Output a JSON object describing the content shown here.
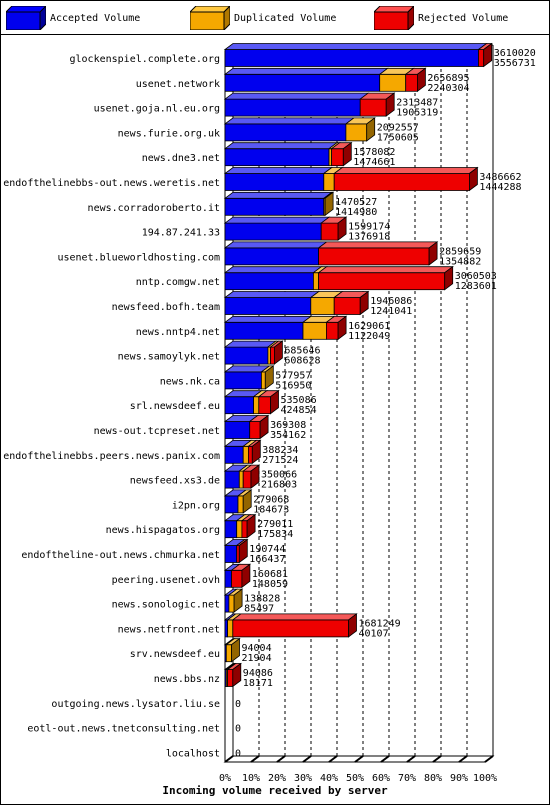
{
  "legend": {
    "accepted": "Accepted Volume",
    "duplicated": "Duplicated Volume",
    "rejected": "Rejected Volume"
  },
  "colors": {
    "accepted": "#0000ee",
    "duplicated": "#f5a800",
    "rejected": "#ee0000",
    "background": "#ffffff"
  },
  "chart_data": {
    "type": "bar",
    "orientation": "horizontal",
    "stacked": true,
    "categories": [
      "glockenspiel.complete.org",
      "usenet.network",
      "usenet.goja.nl.eu.org",
      "news.furie.org.uk",
      "news.dne3.net",
      "endofthelinebbs-out.news.weretis.net",
      "news.corradoroberto.it",
      "194.87.241.33",
      "usenet.blueworldhosting.com",
      "nntp.comgw.net",
      "newsfeed.bofh.team",
      "news.nntp4.net",
      "news.samoylyk.net",
      "news.nk.ca",
      "srl.newsdeef.eu",
      "news-out.tcpreset.net",
      "endofthelinebbs.peers.news.panix.com",
      "newsfeed.xs3.de",
      "i2pn.org",
      "news.hispagatos.org",
      "endoftheline-out.news.chmurka.net",
      "peering.usenet.ovh",
      "news.sonologic.net",
      "news.netfront.net",
      "srv.newsdeef.eu",
      "news.bbs.nz",
      "outgoing.news.lysator.liu.se",
      "eotl-out.news.tnetconsulting.net",
      "localhost"
    ],
    "series": [
      {
        "name": "Accepted Volume",
        "values": [
          97.5,
          59.5,
          52,
          46.5,
          40,
          38,
          38,
          37,
          36,
          34,
          33,
          30,
          16.5,
          14,
          11,
          9.5,
          7,
          5.5,
          5,
          4.5,
          4.5,
          2.5,
          1.5,
          1,
          0.5,
          0.5,
          0,
          0,
          0
        ]
      },
      {
        "name": "Duplicated Volume",
        "values": [
          0,
          10,
          0,
          8,
          1,
          4,
          0.5,
          0,
          0,
          2,
          9,
          9,
          1,
          1.5,
          2,
          0,
          2,
          1.5,
          2,
          2,
          0,
          0,
          2,
          2,
          2,
          0.5,
          0,
          0,
          0
        ]
      },
      {
        "name": "Rejected Volume",
        "values": [
          2,
          4.5,
          10,
          0,
          4.5,
          52,
          0,
          6.5,
          42.5,
          48.5,
          10,
          4.5,
          1.5,
          0,
          4.5,
          4,
          1.5,
          3,
          0,
          2,
          1,
          4,
          0,
          44.5,
          0,
          2,
          0,
          0,
          0
        ]
      }
    ],
    "value_labels": [
      [
        "3610020",
        "3556731"
      ],
      [
        "2656895",
        "2240304"
      ],
      [
        "2313487",
        "1905319"
      ],
      [
        "2092557",
        "1750605"
      ],
      [
        "1578082",
        "1474661"
      ],
      [
        "3486662",
        "1444288"
      ],
      [
        "1470527",
        "1414980"
      ],
      [
        "1599174",
        "1376918"
      ],
      [
        "2859659",
        "1354882"
      ],
      [
        "3060503",
        "1283601"
      ],
      [
        "1946086",
        "1241041"
      ],
      [
        "1629061",
        "1122049"
      ],
      [
        "685646",
        "608628"
      ],
      [
        "577957",
        "516950"
      ],
      [
        "535086",
        "424854"
      ],
      [
        "369308",
        "354162"
      ],
      [
        "388234",
        "271524"
      ],
      [
        "350066",
        "216803"
      ],
      [
        "279068",
        "184673"
      ],
      [
        "279011",
        "175834"
      ],
      [
        "190744",
        "166437"
      ],
      [
        "160681",
        "148059"
      ],
      [
        "138828",
        "85497"
      ],
      [
        "1681249",
        "40107"
      ],
      [
        "94004",
        "21904"
      ],
      [
        "94086",
        "18171"
      ],
      [
        "0",
        ""
      ],
      [
        "0",
        ""
      ],
      [
        "0",
        ""
      ]
    ],
    "x_ticks": [
      "0%",
      "10%",
      "20%",
      "30%",
      "40%",
      "50%",
      "60%",
      "70%",
      "80%",
      "90%",
      "100%"
    ],
    "xlim": [
      0,
      100
    ],
    "xlabel": "Incoming volume received by server",
    "grid": true
  }
}
